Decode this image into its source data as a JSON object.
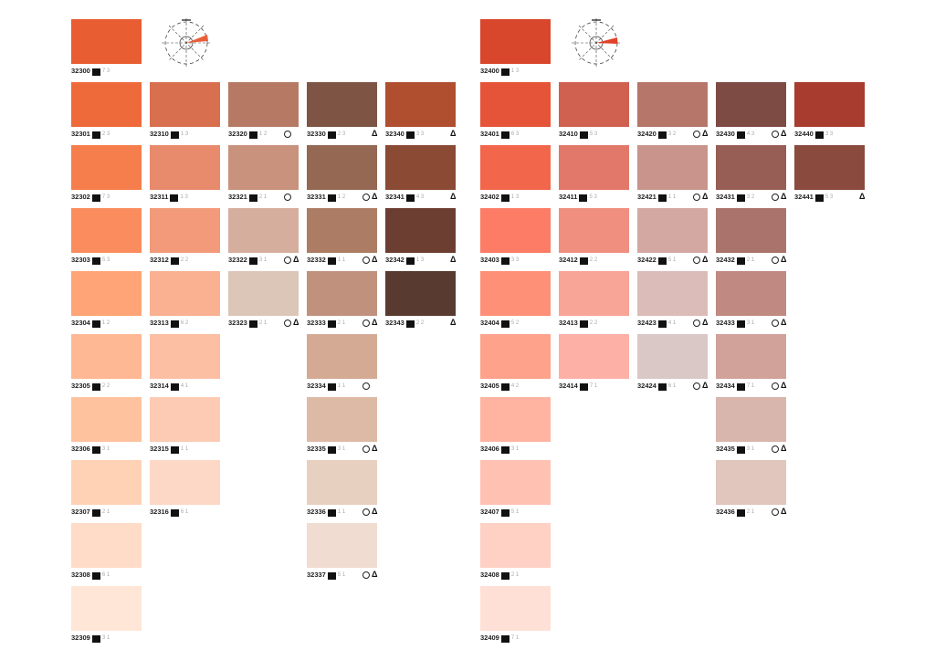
{
  "chart_data": {
    "type": "table",
    "title": "",
    "groups": [
      {
        "name": "32300",
        "columns": [
          [
            {
              "code": "32300",
              "color": "#e85d32",
              "num": "7 3",
              "circle": false,
              "delta": false
            },
            {
              "code": "32301",
              "color": "#ef6a3a",
              "num": "2 3",
              "circle": false,
              "delta": false
            },
            {
              "code": "32302",
              "color": "#f67d4c",
              "num": "7 3",
              "circle": false,
              "delta": false
            },
            {
              "code": "32303",
              "color": "#fa8c5e",
              "num": "5 3",
              "circle": false,
              "delta": false
            },
            {
              "code": "32304",
              "color": "#fea477",
              "num": "1 2",
              "circle": false,
              "delta": false
            },
            {
              "code": "32305",
              "color": "#feb893",
              "num": "2 2",
              "circle": false,
              "delta": false
            },
            {
              "code": "32306",
              "color": "#ffc29f",
              "num": "3 1",
              "circle": false,
              "delta": false
            },
            {
              "code": "32307",
              "color": "#ffd2b6",
              "num": "2 1",
              "circle": false,
              "delta": false
            },
            {
              "code": "32308",
              "color": "#ffdcc8",
              "num": "6 1",
              "circle": false,
              "delta": false
            },
            {
              "code": "32309",
              "color": "#ffe6d6",
              "num": "3 1",
              "circle": false,
              "delta": false
            }
          ],
          [
            {
              "code": "32310",
              "color": "#d87050",
              "num": "1 3",
              "circle": false,
              "delta": false
            },
            {
              "code": "32311",
              "color": "#e88a6c",
              "num": "1 3",
              "circle": false,
              "delta": false
            },
            {
              "code": "32312",
              "color": "#f29a7a",
              "num": "2 2",
              "circle": false,
              "delta": false
            },
            {
              "code": "32313",
              "color": "#f9b192",
              "num": "6 2",
              "circle": false,
              "delta": false
            },
            {
              "code": "32314",
              "color": "#fcbfa4",
              "num": "4 1",
              "circle": false,
              "delta": false
            },
            {
              "code": "32315",
              "color": "#fdcbb4",
              "num": "1 1",
              "circle": false,
              "delta": false
            },
            {
              "code": "32316",
              "color": "#fed8c6",
              "num": "6 1",
              "circle": false,
              "delta": false
            }
          ],
          [
            {
              "code": "32320",
              "color": "#b67a64",
              "num": "1 2",
              "circle": true,
              "delta": false
            },
            {
              "code": "32321",
              "color": "#c8927c",
              "num": "2 1",
              "circle": true,
              "delta": false
            },
            {
              "code": "32322",
              "color": "#d6ae9e",
              "num": "3 1",
              "circle": true,
              "delta": true
            },
            {
              "code": "32323",
              "color": "#dcc6b8",
              "num": "2 1",
              "circle": true,
              "delta": true
            }
          ],
          [
            {
              "code": "32330",
              "color": "#7e5444",
              "num": "2 3",
              "circle": false,
              "delta": true
            },
            {
              "code": "32331",
              "color": "#946852",
              "num": "1 2",
              "circle": true,
              "delta": true
            },
            {
              "code": "32332",
              "color": "#ac7c64",
              "num": "1 1",
              "circle": true,
              "delta": true
            },
            {
              "code": "32333",
              "color": "#c0927e",
              "num": "2 1",
              "circle": true,
              "delta": true
            },
            {
              "code": "32334",
              "color": "#d4aa94",
              "num": "1 1",
              "circle": true,
              "delta": false
            },
            {
              "code": "32335",
              "color": "#ddbaa6",
              "num": "3 1",
              "circle": true,
              "delta": true
            },
            {
              "code": "32336",
              "color": "#e8d0c0",
              "num": "1 1",
              "circle": true,
              "delta": true
            },
            {
              "code": "32337",
              "color": "#f0dcd0",
              "num": "5 1",
              "circle": true,
              "delta": true
            }
          ],
          [
            {
              "code": "32340",
              "color": "#b04e30",
              "num": "3 3",
              "circle": false,
              "delta": true
            },
            {
              "code": "32341",
              "color": "#8a4a34",
              "num": "4 3",
              "circle": false,
              "delta": true
            },
            {
              "code": "32342",
              "color": "#6c3e32",
              "num": "1 3",
              "circle": false,
              "delta": true
            },
            {
              "code": "32343",
              "color": "#583a30",
              "num": "2 2",
              "circle": false,
              "delta": true
            }
          ]
        ]
      },
      {
        "name": "32400",
        "columns": [
          [
            {
              "code": "32400",
              "color": "#d8472c",
              "num": "1 3",
              "circle": false,
              "delta": false
            },
            {
              "code": "32401",
              "color": "#e55438",
              "num": "6 3",
              "circle": false,
              "delta": false
            },
            {
              "code": "32402",
              "color": "#f2664c",
              "num": "1 3",
              "circle": false,
              "delta": false
            },
            {
              "code": "32403",
              "color": "#fd7c66",
              "num": "3 3",
              "circle": false,
              "delta": false
            },
            {
              "code": "32404",
              "color": "#fe9078",
              "num": "5 2",
              "circle": false,
              "delta": false
            },
            {
              "code": "32405",
              "color": "#fea28c",
              "num": "4 2",
              "circle": false,
              "delta": false
            },
            {
              "code": "32406",
              "color": "#ffb4a2",
              "num": "3 1",
              "circle": false,
              "delta": false
            },
            {
              "code": "32407",
              "color": "#ffc2b2",
              "num": "5 1",
              "circle": false,
              "delta": false
            },
            {
              "code": "32408",
              "color": "#ffd0c4",
              "num": "2 1",
              "circle": false,
              "delta": false
            },
            {
              "code": "32409",
              "color": "#ffe0d6",
              "num": "7 1",
              "circle": false,
              "delta": false
            }
          ],
          [
            {
              "code": "32410",
              "color": "#d06050",
              "num": "5 3",
              "circle": false,
              "delta": false
            },
            {
              "code": "32411",
              "color": "#e2786a",
              "num": "5 3",
              "circle": false,
              "delta": false
            },
            {
              "code": "32412",
              "color": "#f08e80",
              "num": "2 2",
              "circle": false,
              "delta": false
            },
            {
              "code": "32413",
              "color": "#f8a496",
              "num": "2 2",
              "circle": false,
              "delta": false
            },
            {
              "code": "32414",
              "color": "#fdb0a6",
              "num": "7 1",
              "circle": false,
              "delta": false
            }
          ],
          [
            {
              "code": "32420",
              "color": "#b6766a",
              "num": "3 2",
              "circle": true,
              "delta": true
            },
            {
              "code": "32421",
              "color": "#c8948c",
              "num": "1 1",
              "circle": true,
              "delta": true
            },
            {
              "code": "32422",
              "color": "#d4a8a2",
              "num": "5 1",
              "circle": true,
              "delta": true
            },
            {
              "code": "32423",
              "color": "#dcbcb8",
              "num": "4 1",
              "circle": true,
              "delta": true
            },
            {
              "code": "32424",
              "color": "#d9c8c6",
              "num": "6 1",
              "circle": true,
              "delta": true
            }
          ],
          [
            {
              "code": "32430",
              "color": "#7e4a44",
              "num": "4 3",
              "circle": true,
              "delta": true
            },
            {
              "code": "32431",
              "color": "#965e54",
              "num": "3 2",
              "circle": true,
              "delta": true
            },
            {
              "code": "32432",
              "color": "#aa746c",
              "num": "2 1",
              "circle": true,
              "delta": true
            },
            {
              "code": "32433",
              "color": "#c08a82",
              "num": "3 1",
              "circle": true,
              "delta": true
            },
            {
              "code": "32434",
              "color": "#d0a29a",
              "num": "7 1",
              "circle": true,
              "delta": true
            },
            {
              "code": "32435",
              "color": "#d8b6ae",
              "num": "3 1",
              "circle": true,
              "delta": true
            },
            {
              "code": "32436",
              "color": "#e0c6bc",
              "num": "2 1",
              "circle": true,
              "delta": true
            }
          ],
          [
            {
              "code": "32440",
              "color": "#a83c2e",
              "num": "3 3",
              "circle": false,
              "delta": false
            },
            {
              "code": "32441",
              "color": "#8a4a3e",
              "num": "5 3",
              "circle": false,
              "delta": true
            }
          ]
        ]
      }
    ]
  },
  "accent": "#e8603a"
}
